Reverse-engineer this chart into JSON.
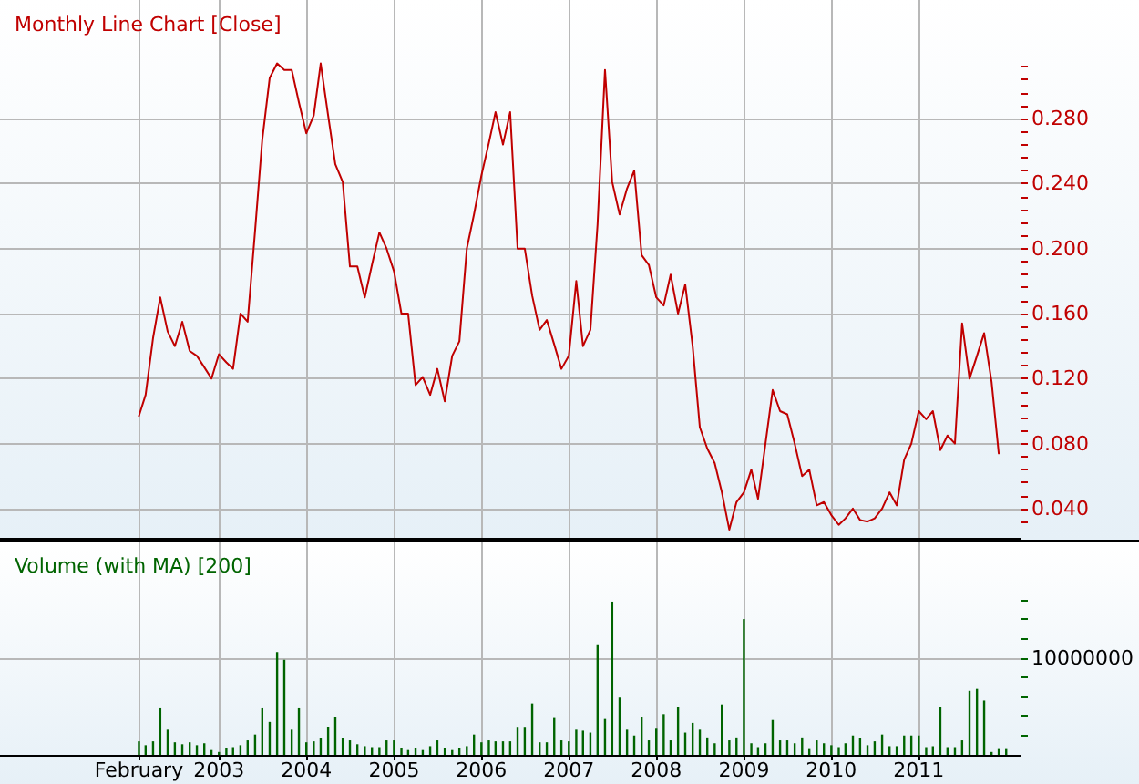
{
  "chart_data": [
    {
      "type": "line",
      "title": "Monthly Line Chart [Close]",
      "color": "#c00000",
      "marker": "none",
      "line_style": "solid",
      "grid": true,
      "tick_labels": "y",
      "x": [
        "2002-02",
        "2002-03",
        "2002-04",
        "2002-05",
        "2002-06",
        "2002-07",
        "2002-08",
        "2002-09",
        "2002-10",
        "2002-11",
        "2002-12",
        "2003-01",
        "2003-02",
        "2003-03",
        "2003-04",
        "2003-05",
        "2003-06",
        "2003-07",
        "2003-08",
        "2003-09",
        "2003-10",
        "2003-11",
        "2003-12",
        "2004-01",
        "2004-02",
        "2004-03",
        "2004-04",
        "2004-05",
        "2004-06",
        "2004-07",
        "2004-08",
        "2004-09",
        "2004-10",
        "2004-11",
        "2004-12",
        "2005-01",
        "2005-02",
        "2005-03",
        "2005-04",
        "2005-05",
        "2005-06",
        "2005-07",
        "2005-08",
        "2005-09",
        "2005-10",
        "2005-11",
        "2005-12",
        "2006-01",
        "2006-02",
        "2006-03",
        "2006-04",
        "2006-05",
        "2006-06",
        "2006-07",
        "2006-08",
        "2006-09",
        "2006-10",
        "2006-11",
        "2006-12",
        "2007-01",
        "2007-02",
        "2007-03",
        "2007-04",
        "2007-05",
        "2007-06",
        "2007-07",
        "2007-08",
        "2007-09",
        "2007-10",
        "2007-11",
        "2007-12",
        "2008-01",
        "2008-02",
        "2008-03",
        "2008-04",
        "2008-05",
        "2008-06",
        "2008-07",
        "2008-08",
        "2008-09",
        "2008-10",
        "2008-11",
        "2008-12",
        "2009-01",
        "2009-02",
        "2009-03",
        "2009-04",
        "2009-05",
        "2009-06",
        "2009-07",
        "2009-08",
        "2009-09",
        "2009-10",
        "2009-11",
        "2009-12",
        "2010-01",
        "2010-02",
        "2010-03",
        "2010-04",
        "2010-05",
        "2010-06",
        "2010-07",
        "2010-08",
        "2010-09",
        "2010-10",
        "2010-11",
        "2010-12",
        "2011-01",
        "2011-02",
        "2011-03",
        "2011-04",
        "2011-05",
        "2011-06",
        "2011-07",
        "2011-08",
        "2011-09",
        "2011-10",
        "2011-11",
        "2011-12"
      ],
      "values": [
        0.097,
        0.11,
        0.145,
        0.17,
        0.149,
        0.14,
        0.155,
        0.137,
        0.134,
        0.127,
        0.12,
        0.135,
        0.13,
        0.126,
        0.16,
        0.155,
        0.211,
        0.267,
        0.305,
        0.314,
        0.31,
        0.31,
        0.29,
        0.271,
        0.282,
        0.314,
        0.282,
        0.252,
        0.241,
        0.189,
        0.189,
        0.17,
        0.19,
        0.21,
        0.2,
        0.186,
        0.16,
        0.16,
        0.116,
        0.121,
        0.11,
        0.126,
        0.106,
        0.134,
        0.143,
        0.2,
        0.221,
        0.245,
        0.265,
        0.284,
        0.264,
        0.284,
        0.2,
        0.2,
        0.171,
        0.15,
        0.156,
        0.141,
        0.126,
        0.134,
        0.18,
        0.14,
        0.15,
        0.215,
        0.31,
        0.241,
        0.221,
        0.237,
        0.248,
        0.196,
        0.19,
        0.17,
        0.165,
        0.184,
        0.16,
        0.178,
        0.14,
        0.09,
        0.077,
        0.068,
        0.05,
        0.027,
        0.044,
        0.05,
        0.064,
        0.046,
        0.08,
        0.113,
        0.1,
        0.098,
        0.08,
        0.06,
        0.064,
        0.042,
        0.044,
        0.036,
        0.03,
        0.034,
        0.04,
        0.033,
        0.032,
        0.034,
        0.04,
        0.05,
        0.042,
        0.07,
        0.08,
        0.1,
        0.095,
        0.1,
        0.076,
        0.085,
        0.08,
        0.154,
        0.12,
        0.134,
        0.148,
        0.118,
        0.074
      ],
      "xlim": [
        "2000-07",
        "2012-03"
      ],
      "xticks": [
        {
          "value": "2002-02",
          "label": null
        },
        {
          "value": "2003-01",
          "label": null
        },
        {
          "value": "2004-01",
          "label": null
        },
        {
          "value": "2005-01",
          "label": null
        },
        {
          "value": "2006-01",
          "label": null
        },
        {
          "value": "2007-01",
          "label": null
        },
        {
          "value": "2008-01",
          "label": null
        },
        {
          "value": "2009-01",
          "label": null
        },
        {
          "value": "2010-01",
          "label": null
        },
        {
          "value": "2011-01",
          "label": null
        }
      ],
      "ylim": [
        0.022,
        0.353
      ],
      "yticks": [
        {
          "value": 0.032,
          "label": null
        },
        {
          "value": 0.04,
          "label": "0.040"
        },
        {
          "value": 0.048,
          "label": null
        },
        {
          "value": 0.056,
          "label": null
        },
        {
          "value": 0.064,
          "label": null
        },
        {
          "value": 0.072,
          "label": null
        },
        {
          "value": 0.08,
          "label": "0.080"
        },
        {
          "value": 0.088,
          "label": null
        },
        {
          "value": 0.096,
          "label": null
        },
        {
          "value": 0.104,
          "label": null
        },
        {
          "value": 0.112,
          "label": null
        },
        {
          "value": 0.12,
          "label": "0.120"
        },
        {
          "value": 0.128,
          "label": null
        },
        {
          "value": 0.136,
          "label": null
        },
        {
          "value": 0.144,
          "label": null
        },
        {
          "value": 0.152,
          "label": null
        },
        {
          "value": 0.16,
          "label": "0.160"
        },
        {
          "value": 0.168,
          "label": null
        },
        {
          "value": 0.176,
          "label": null
        },
        {
          "value": 0.184,
          "label": null
        },
        {
          "value": 0.192,
          "label": null
        },
        {
          "value": 0.2,
          "label": "0.200"
        },
        {
          "value": 0.208,
          "label": null
        },
        {
          "value": 0.216,
          "label": null
        },
        {
          "value": 0.224,
          "label": null
        },
        {
          "value": 0.232,
          "label": null
        },
        {
          "value": 0.24,
          "label": "0.240"
        },
        {
          "value": 0.248,
          "label": null
        },
        {
          "value": 0.256,
          "label": null
        },
        {
          "value": 0.264,
          "label": null
        },
        {
          "value": 0.272,
          "label": null
        },
        {
          "value": 0.28,
          "label": "0.280"
        },
        {
          "value": 0.288,
          "label": null
        },
        {
          "value": 0.296,
          "label": null
        },
        {
          "value": 0.304,
          "label": null
        },
        {
          "value": 0.312,
          "label": null
        }
      ]
    },
    {
      "type": "bar",
      "title": "Volume (with MA) [200]",
      "color": "#006400",
      "grid": true,
      "x": [
        "2002-02",
        "2002-03",
        "2002-04",
        "2002-05",
        "2002-06",
        "2002-07",
        "2002-08",
        "2002-09",
        "2002-10",
        "2002-11",
        "2002-12",
        "2003-01",
        "2003-02",
        "2003-03",
        "2003-04",
        "2003-05",
        "2003-06",
        "2003-07",
        "2003-08",
        "2003-09",
        "2003-10",
        "2003-11",
        "2003-12",
        "2004-01",
        "2004-02",
        "2004-03",
        "2004-04",
        "2004-05",
        "2004-06",
        "2004-07",
        "2004-08",
        "2004-09",
        "2004-10",
        "2004-11",
        "2004-12",
        "2005-01",
        "2005-02",
        "2005-03",
        "2005-04",
        "2005-05",
        "2005-06",
        "2005-07",
        "2005-08",
        "2005-09",
        "2005-10",
        "2005-11",
        "2005-12",
        "2006-01",
        "2006-02",
        "2006-03",
        "2006-04",
        "2006-05",
        "2006-06",
        "2006-07",
        "2006-08",
        "2006-09",
        "2006-10",
        "2006-11",
        "2006-12",
        "2007-01",
        "2007-02",
        "2007-03",
        "2007-04",
        "2007-05",
        "2007-06",
        "2007-07",
        "2007-08",
        "2007-09",
        "2007-10",
        "2007-11",
        "2007-12",
        "2008-01",
        "2008-02",
        "2008-03",
        "2008-04",
        "2008-05",
        "2008-06",
        "2008-07",
        "2008-08",
        "2008-09",
        "2008-10",
        "2008-11",
        "2008-12",
        "2009-01",
        "2009-02",
        "2009-03",
        "2009-04",
        "2009-05",
        "2009-06",
        "2009-07",
        "2009-08",
        "2009-09",
        "2009-10",
        "2009-11",
        "2009-12",
        "2010-01",
        "2010-02",
        "2010-03",
        "2010-04",
        "2010-05",
        "2010-06",
        "2010-07",
        "2010-08",
        "2010-09",
        "2010-10",
        "2010-11",
        "2010-12",
        "2011-01",
        "2011-02",
        "2011-03",
        "2011-04",
        "2011-05",
        "2011-06",
        "2011-07",
        "2011-08",
        "2011-09",
        "2011-10",
        "2011-11",
        "2011-12",
        "2012-01"
      ],
      "values": [
        1400000,
        1000000,
        1400000,
        4800000,
        2600000,
        1300000,
        1100000,
        1300000,
        1000000,
        1200000,
        500000,
        300000,
        700000,
        800000,
        1000000,
        1500000,
        2100000,
        4800000,
        3400000,
        10600000,
        9800000,
        2600000,
        4800000,
        1300000,
        1400000,
        1700000,
        2900000,
        3900000,
        1700000,
        1500000,
        1100000,
        900000,
        800000,
        800000,
        1500000,
        1500000,
        700000,
        500000,
        700000,
        500000,
        900000,
        1500000,
        700000,
        500000,
        700000,
        900000,
        2100000,
        1300000,
        1500000,
        1400000,
        1400000,
        1400000,
        2800000,
        2800000,
        5300000,
        1300000,
        1300000,
        3800000,
        1500000,
        1400000,
        2600000,
        2500000,
        2300000,
        11400000,
        3700000,
        15800000,
        5900000,
        2600000,
        2000000,
        3900000,
        1500000,
        2700000,
        4200000,
        1500000,
        4900000,
        2300000,
        3300000,
        2600000,
        1800000,
        1200000,
        5200000,
        1500000,
        1800000,
        14000000,
        1200000,
        800000,
        1200000,
        3600000,
        1500000,
        1500000,
        1200000,
        1800000,
        600000,
        1500000,
        1200000,
        1000000,
        800000,
        1200000,
        2000000,
        1700000,
        1000000,
        1400000,
        2100000,
        900000,
        900000,
        2000000,
        2000000,
        2000000,
        800000,
        900000,
        4900000,
        800000,
        800000,
        1500000,
        6600000,
        6800000,
        5600000,
        300000,
        600000,
        600000
      ],
      "xlim": [
        "2000-07",
        "2012-03"
      ],
      "xticks": [
        {
          "value": "2002-02",
          "label": "February"
        },
        {
          "value": "2003-01",
          "label": "2003"
        },
        {
          "value": "2004-01",
          "label": "2004"
        },
        {
          "value": "2005-01",
          "label": "2005"
        },
        {
          "value": "2006-01",
          "label": "2006"
        },
        {
          "value": "2007-01",
          "label": "2007"
        },
        {
          "value": "2008-01",
          "label": "2008"
        },
        {
          "value": "2009-01",
          "label": "2009"
        },
        {
          "value": "2010-01",
          "label": "2010"
        },
        {
          "value": "2011-01",
          "label": "2011"
        }
      ],
      "ylim": [
        0,
        22000000
      ],
      "yticks": [
        {
          "value": 2000000,
          "label": null
        },
        {
          "value": 4000000,
          "label": null
        },
        {
          "value": 6000000,
          "label": null
        },
        {
          "value": 8000000,
          "label": null
        },
        10000000,
        {
          "value": 12000000,
          "label": null
        },
        {
          "value": 14000000,
          "label": null
        },
        {
          "value": 16000000,
          "label": null
        }
      ]
    }
  ]
}
